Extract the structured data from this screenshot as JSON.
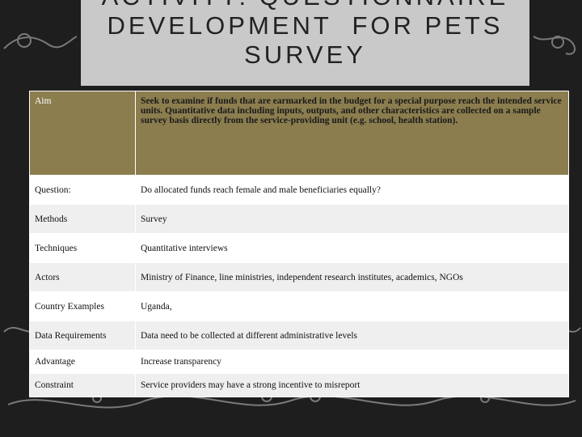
{
  "title_lines": [
    "ACTIVITY: QUESTIONNAIRE",
    "DEVELOPMENT  FOR PETS",
    "SURVEY"
  ],
  "table": {
    "rows": [
      [
        "Aim",
        "Seek to examine if funds that are earmarked in the budget for a special purpose reach the intended service units. Quantitative data including inputs, outputs, and other characteristics are collected on a sample survey basis directly from the service-providing unit (e.g. school, health station)."
      ],
      [
        "Question:",
        "Do allocated funds reach female and male beneficiaries equally?"
      ],
      [
        "Methods",
        "Survey"
      ],
      [
        "Techniques",
        "Quantitative interviews"
      ],
      [
        "Actors",
        "Ministry of Finance, line ministries, independent research institutes, academics, NGOs"
      ],
      [
        "Country Examples",
        "Uganda,"
      ],
      [
        "Data Requirements",
        "Data need to be collected at different administrative levels"
      ],
      [
        "Advantage",
        "Increase transparency"
      ],
      [
        "Constraint",
        "Service providers may have a strong  incentive to misreport"
      ]
    ]
  }
}
